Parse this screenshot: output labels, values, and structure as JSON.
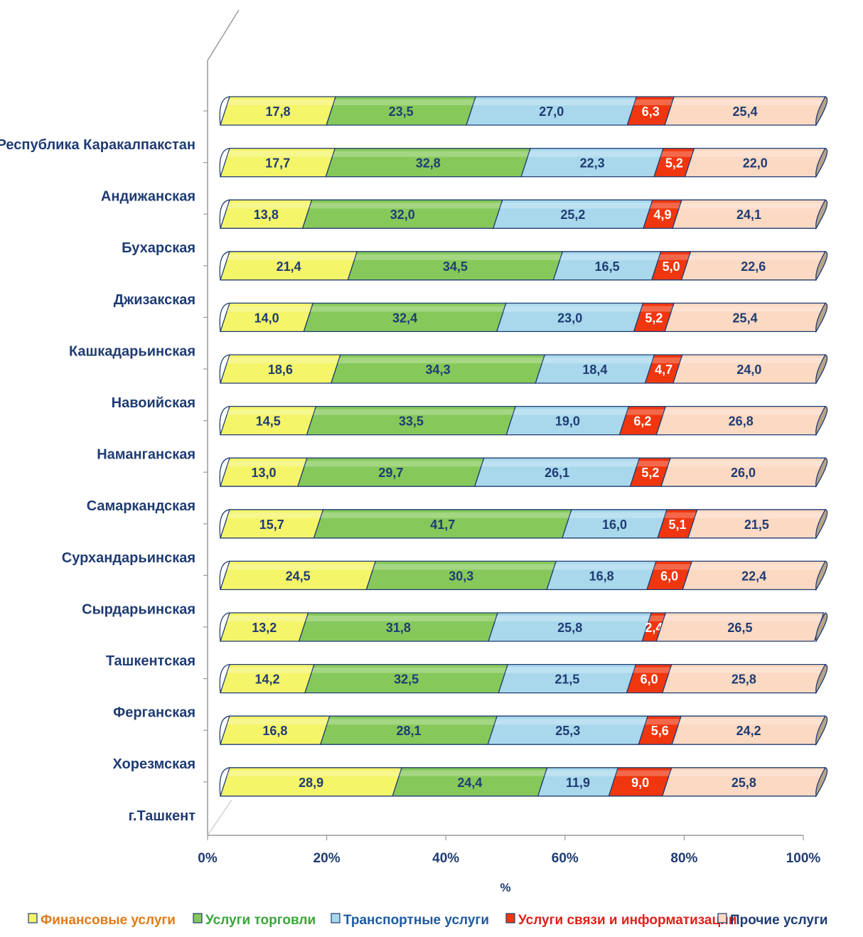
{
  "chart_data": {
    "type": "bar",
    "orientation": "horizontal",
    "stacked": "100%",
    "categories": [
      "Республика  Каракалпакстан",
      "Андижанская",
      "Бухарская",
      "Джизакская",
      "Кашкадарьинская",
      "Навоийская",
      "Наманганская",
      "Самаркандская",
      "Сурхандарьинская",
      "Сырдарьинская",
      "Ташкентская",
      "Ферганская",
      "Хорезмская",
      "г.Ташкент"
    ],
    "series": [
      {
        "name": "Финансовые  услуги",
        "color": "#f5f56a",
        "label_color": "#1f3c73",
        "legend_color": "#e07b1a",
        "values": [
          17.8,
          17.7,
          13.8,
          21.4,
          14.0,
          18.6,
          14.5,
          13.0,
          15.7,
          24.5,
          13.2,
          14.2,
          16.8,
          28.9
        ],
        "labels": [
          "17,8",
          "17,7",
          "13,8",
          "21,4",
          "14,0",
          "18,6",
          "14,5",
          "13,0",
          "15,7",
          "24,5",
          "13,2",
          "14,2",
          "16,8",
          "28,9"
        ]
      },
      {
        "name": "Услуги торговли",
        "color": "#86c95a",
        "label_color": "#1f3c73",
        "legend_color": "#3aa63a",
        "values": [
          23.5,
          32.8,
          32.0,
          34.5,
          32.4,
          34.3,
          33.5,
          29.7,
          41.7,
          30.3,
          31.8,
          32.5,
          28.1,
          24.4
        ],
        "labels": [
          "23,5",
          "32,8",
          "32,0",
          "34,5",
          "32,4",
          "34,3",
          "33,5",
          "29,7",
          "41,7",
          "30,3",
          "31,8",
          "32,5",
          "28,1",
          "24,4"
        ]
      },
      {
        "name": "Транспортные  услуги",
        "color": "#a9d8ec",
        "label_color": "#1f3c73",
        "legend_color": "#1f5aa0",
        "values": [
          27.0,
          22.3,
          25.2,
          16.5,
          23.0,
          18.4,
          19.0,
          26.1,
          16.0,
          16.8,
          25.8,
          21.5,
          25.3,
          11.9
        ],
        "labels": [
          "27,0",
          "22,3",
          "25,2",
          "16,5",
          "23,0",
          "18,4",
          "19,0",
          "26,1",
          "16,0",
          "16,8",
          "25,8",
          "21,5",
          "25,3",
          "11,9"
        ]
      },
      {
        "name": "Услуги связи и информатизации",
        "color": "#f0360e",
        "label_color": "#ffffff",
        "legend_color": "#e0201a",
        "values": [
          6.3,
          5.2,
          4.9,
          5.0,
          5.2,
          4.7,
          6.2,
          5.2,
          5.1,
          6.0,
          2.4,
          6.0,
          5.6,
          9.0
        ],
        "labels": [
          "6,3",
          "5,2",
          "4,9",
          "5,0",
          "5,2",
          "4,7",
          "6,2",
          "5,2",
          "5,1",
          "6,0",
          "2,4",
          "6,0",
          "5,6",
          "9,0"
        ]
      },
      {
        "name": "Прочие услуги",
        "color": "#fcd9c3",
        "label_color": "#1f3c73",
        "legend_color": "#1f3c73",
        "values": [
          25.4,
          22.0,
          24.1,
          22.6,
          25.4,
          24.0,
          26.8,
          26.0,
          21.5,
          22.4,
          26.5,
          25.8,
          24.2,
          25.8
        ],
        "labels": [
          "25,4",
          "22,0",
          "24,1",
          "22,6",
          "25,4",
          "24,0",
          "26,8",
          "26,0",
          "21,5",
          "22,4",
          "26,5",
          "25,8",
          "24,2",
          "25,8"
        ]
      }
    ],
    "xaxis": {
      "ticks": [
        "0%",
        "20%",
        "40%",
        "60%",
        "80%",
        "100%"
      ],
      "title": "%",
      "range": [
        0,
        100
      ]
    },
    "legend_position": "bottom",
    "style": "3d-cylinder"
  }
}
